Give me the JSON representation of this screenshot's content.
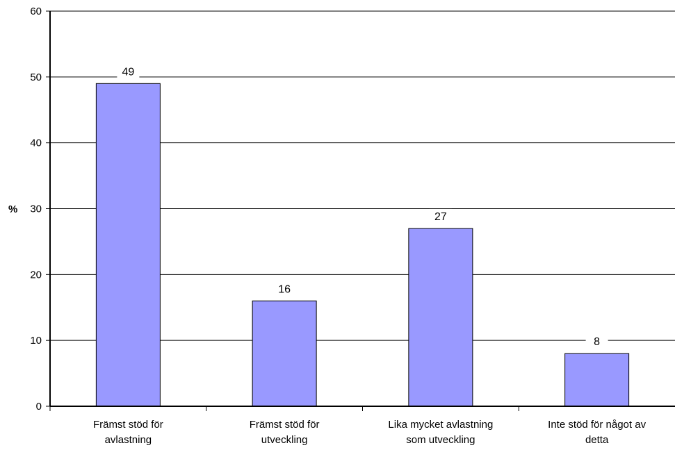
{
  "chart_data": {
    "type": "bar",
    "ylabel": "%",
    "ylim": [
      0,
      60
    ],
    "yticks": [
      0,
      10,
      20,
      30,
      40,
      50,
      60
    ],
    "grid": true,
    "legend": "none",
    "bar_color": "#9999ff",
    "categories": [
      [
        "Främst stöd för",
        "avlastning"
      ],
      [
        "Främst stöd för",
        "utveckling"
      ],
      [
        "Lika mycket avlastning",
        "som utveckling"
      ],
      [
        "Inte stöd för något av",
        "detta"
      ]
    ],
    "values": [
      49,
      16,
      27,
      8
    ]
  }
}
